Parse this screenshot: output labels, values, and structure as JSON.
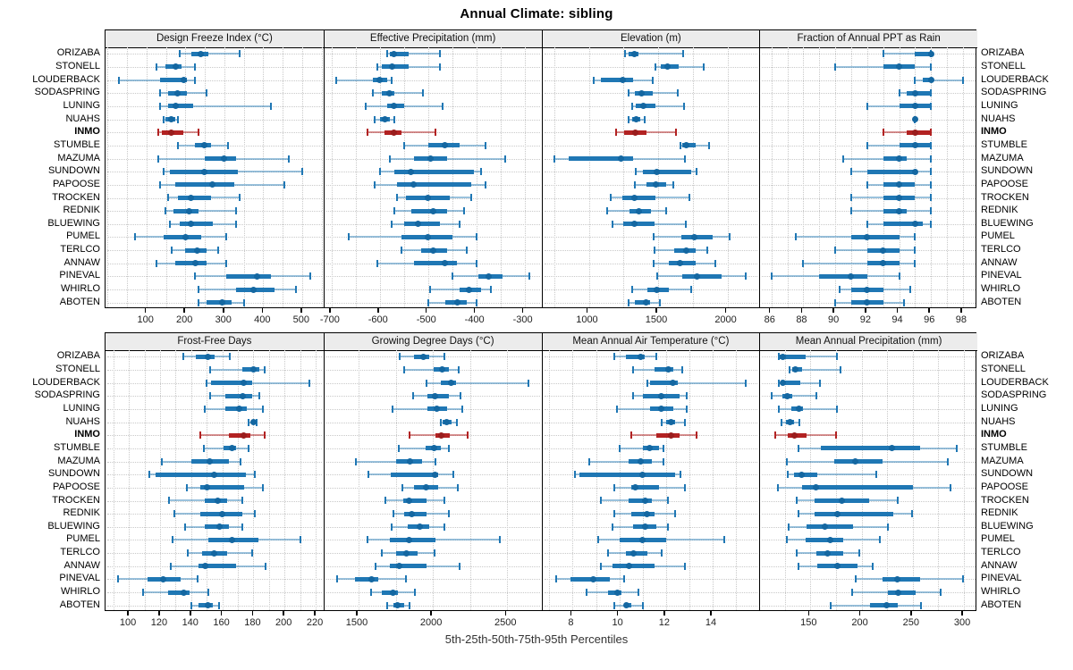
{
  "title": "Annual Climate: sibling",
  "caption": "5th-25th-50th-75th-95th Percentiles",
  "percentile_labels": [
    "5th",
    "25th",
    "50th",
    "75th",
    "95th"
  ],
  "stations": [
    "ORIZABA",
    "STONELL",
    "LOUDERBACK",
    "SODASPRING",
    "LUNING",
    "NUAHS",
    "INMO",
    "STUMBLE",
    "MAZUMA",
    "SUNDOWN",
    "PAPOOSE",
    "TROCKEN",
    "REDNIK",
    "BLUEWING",
    "PUMEL",
    "TERLCO",
    "ANNAW",
    "PINEVAL",
    "WHIRLO",
    "ABOTEN"
  ],
  "highlight_station": "INMO",
  "colors": {
    "series": "#1f77b4",
    "series_light": "rgba(31,119,180,0.45)",
    "series_dot": "#1467a1",
    "highlight": "#b22222",
    "highlight_light": "rgba(178,34,34,0.5)",
    "highlight_dot": "#9a1d1d",
    "header_bg": "#ececec",
    "grid": "#c9c9c9",
    "border": "#000000"
  },
  "chart_data": [
    {
      "type": "dot-whisker",
      "title": "Design Freeze Index (°C)",
      "row": 0,
      "col": 0,
      "xmin": -5,
      "xmax": 555,
      "ticks": [
        100,
        200,
        300,
        400,
        500
      ],
      "grid_step": 50,
      "values": [
        [
          185,
          215,
          240,
          260,
          340
        ],
        [
          125,
          150,
          175,
          190,
          225
        ],
        [
          30,
          135,
          195,
          205,
          225
        ],
        [
          135,
          155,
          180,
          205,
          255
        ],
        [
          135,
          155,
          175,
          220,
          420
        ],
        [
          145,
          150,
          163,
          175,
          182
        ],
        [
          130,
          140,
          165,
          195,
          235
        ],
        [
          180,
          225,
          250,
          265,
          310
        ],
        [
          130,
          250,
          300,
          330,
          465
        ],
        [
          145,
          160,
          250,
          335,
          500
        ],
        [
          135,
          175,
          270,
          325,
          455
        ],
        [
          155,
          180,
          215,
          265,
          340
        ],
        [
          150,
          170,
          210,
          235,
          330
        ],
        [
          160,
          185,
          215,
          270,
          330
        ],
        [
          70,
          145,
          200,
          240,
          305
        ],
        [
          165,
          200,
          230,
          255,
          285
        ],
        [
          125,
          175,
          225,
          255,
          305
        ],
        [
          225,
          305,
          385,
          420,
          520
        ],
        [
          235,
          330,
          375,
          430,
          485
        ],
        [
          235,
          255,
          295,
          320,
          350
        ]
      ]
    },
    {
      "type": "dot-whisker",
      "title": "Effective Precipitation (mm)",
      "row": 0,
      "col": 1,
      "xmin": -715,
      "xmax": -265,
      "ticks": [
        -700,
        -600,
        -500,
        -400,
        -300
      ],
      "grid_step": 50,
      "values": [
        [
          -585,
          -580,
          -570,
          -540,
          -475
        ],
        [
          -605,
          -595,
          -575,
          -540,
          -475
        ],
        [
          -690,
          -615,
          -600,
          -585,
          -575
        ],
        [
          -615,
          -595,
          -580,
          -570,
          -510
        ],
        [
          -630,
          -585,
          -570,
          -550,
          -470
        ],
        [
          -610,
          -600,
          -590,
          -580,
          -570
        ],
        [
          -625,
          -590,
          -570,
          -555,
          -485
        ],
        [
          -550,
          -500,
          -465,
          -435,
          -380
        ],
        [
          -580,
          -530,
          -495,
          -460,
          -340
        ],
        [
          -600,
          -570,
          -535,
          -405,
          -390
        ],
        [
          -610,
          -565,
          -530,
          -410,
          -380
        ],
        [
          -565,
          -545,
          -500,
          -455,
          -410
        ],
        [
          -570,
          -535,
          -490,
          -460,
          -425
        ],
        [
          -575,
          -550,
          -520,
          -475,
          -435
        ],
        [
          -665,
          -555,
          -500,
          -450,
          -400
        ],
        [
          -555,
          -515,
          -490,
          -460,
          -420
        ],
        [
          -605,
          -530,
          -465,
          -440,
          -400
        ],
        [
          -450,
          -395,
          -375,
          -345,
          -290
        ],
        [
          -495,
          -435,
          -415,
          -390,
          -370
        ],
        [
          -500,
          -465,
          -440,
          -420,
          -400
        ]
      ]
    },
    {
      "type": "dot-whisker",
      "title": "Elevation (m)",
      "row": 0,
      "col": 2,
      "xmin": 665,
      "xmax": 2230,
      "ticks": [
        1000,
        1500,
        2000
      ],
      "grid_step": 250,
      "values": [
        [
          1260,
          1290,
          1330,
          1360,
          1680
        ],
        [
          1480,
          1520,
          1570,
          1650,
          1830
        ],
        [
          1035,
          1090,
          1245,
          1320,
          1460
        ],
        [
          1285,
          1335,
          1380,
          1460,
          1640
        ],
        [
          1310,
          1340,
          1395,
          1480,
          1685
        ],
        [
          1285,
          1310,
          1345,
          1370,
          1405
        ],
        [
          1195,
          1255,
          1335,
          1415,
          1630
        ],
        [
          1660,
          1675,
          1700,
          1770,
          1865
        ],
        [
          755,
          855,
          1230,
          1320,
          1695
        ],
        [
          1340,
          1390,
          1490,
          1740,
          1780
        ],
        [
          1330,
          1415,
          1485,
          1555,
          1610
        ],
        [
          1155,
          1245,
          1330,
          1480,
          1725
        ],
        [
          1130,
          1295,
          1360,
          1450,
          1555
        ],
        [
          1170,
          1250,
          1330,
          1475,
          1700
        ],
        [
          1465,
          1670,
          1760,
          1895,
          2015
        ],
        [
          1475,
          1615,
          1700,
          1770,
          1855
        ],
        [
          1465,
          1580,
          1660,
          1770,
          1910
        ],
        [
          1495,
          1675,
          1780,
          1960,
          2130
        ],
        [
          1315,
          1420,
          1490,
          1580,
          1740
        ],
        [
          1290,
          1335,
          1410,
          1440,
          1510
        ]
      ]
    },
    {
      "type": "dot-whisker",
      "title": "Fraction of Annual PPT as Rain",
      "row": 0,
      "col": 3,
      "xmin": 85.3,
      "xmax": 98.9,
      "ticks": [
        86,
        88,
        90,
        92,
        94,
        96,
        98
      ],
      "grid_step": 1,
      "values": [
        [
          93,
          95,
          96,
          96,
          96
        ],
        [
          90,
          93,
          94,
          95,
          96
        ],
        [
          95,
          95.5,
          96,
          96,
          98
        ],
        [
          94,
          94.5,
          95,
          96,
          96
        ],
        [
          92,
          94,
          95,
          96,
          96
        ],
        [
          95,
          95,
          95,
          95,
          95
        ],
        [
          93,
          94.5,
          95,
          96,
          96
        ],
        [
          92,
          94,
          95,
          96,
          96
        ],
        [
          90.5,
          93,
          94,
          94.5,
          96
        ],
        [
          91,
          92,
          95,
          95,
          96
        ],
        [
          92,
          93,
          94,
          95,
          96
        ],
        [
          91,
          93,
          94,
          95,
          96
        ],
        [
          91,
          93,
          94,
          94.5,
          96
        ],
        [
          92,
          93,
          95,
          95.5,
          96
        ],
        [
          87.5,
          91,
          92,
          94,
          95
        ],
        [
          90,
          92,
          93,
          94,
          95
        ],
        [
          88,
          92,
          93,
          94,
          95
        ],
        [
          86,
          89,
          91,
          92,
          94
        ],
        [
          90.3,
          91,
          92,
          93,
          94.7
        ],
        [
          90,
          91,
          92,
          93,
          94.3
        ]
      ]
    },
    {
      "type": "dot-whisker",
      "title": "Frost-Free Days",
      "row": 1,
      "col": 0,
      "xmin": 85,
      "xmax": 225,
      "ticks": [
        100,
        120,
        140,
        160,
        180,
        200,
        220
      ],
      "grid_step": 10,
      "values": [
        [
          135,
          143,
          151,
          155,
          165
        ],
        [
          152,
          173,
          180,
          184,
          187
        ],
        [
          150,
          153,
          174,
          179,
          216
        ],
        [
          152,
          162,
          173,
          179,
          184
        ],
        [
          149,
          162,
          171,
          176,
          186
        ],
        [
          177,
          179,
          180,
          181,
          182
        ],
        [
          146,
          164,
          174,
          178,
          187
        ],
        [
          148,
          161,
          166,
          169,
          177
        ],
        [
          121,
          140,
          152,
          164,
          172
        ],
        [
          113,
          117,
          155,
          175,
          181
        ],
        [
          137,
          146,
          150,
          174,
          186
        ],
        [
          126,
          149,
          157,
          163,
          173
        ],
        [
          129,
          146,
          160,
          173,
          181
        ],
        [
          136,
          149,
          158,
          164,
          173
        ],
        [
          128,
          151,
          166,
          183,
          210
        ],
        [
          138,
          147,
          155,
          163,
          179
        ],
        [
          127,
          145,
          149,
          169,
          188
        ],
        [
          93,
          112,
          122,
          133,
          144
        ],
        [
          109,
          125,
          135,
          139,
          151
        ],
        [
          140,
          145,
          151,
          154,
          158
        ]
      ]
    },
    {
      "type": "dot-whisker",
      "title": "Growing Degree Days (°C)",
      "row": 1,
      "col": 1,
      "xmin": 1270,
      "xmax": 2730,
      "ticks": [
        1500,
        2000,
        2500
      ],
      "grid_step": 250,
      "values": [
        [
          1775,
          1875,
          1935,
          1975,
          2075
        ],
        [
          1805,
          2005,
          2065,
          2105,
          2175
        ],
        [
          1955,
          2055,
          2125,
          2155,
          2640
        ],
        [
          1865,
          1965,
          2015,
          2105,
          2185
        ],
        [
          1730,
          1965,
          2025,
          2095,
          2195
        ],
        [
          2055,
          2065,
          2090,
          2125,
          2160
        ],
        [
          1840,
          2015,
          2055,
          2115,
          2235
        ],
        [
          1770,
          1950,
          2010,
          2055,
          2105
        ],
        [
          1480,
          1755,
          1845,
          1925,
          2020
        ],
        [
          1565,
          1715,
          2015,
          2035,
          2135
        ],
        [
          1795,
          1875,
          1955,
          2035,
          2170
        ],
        [
          1680,
          1800,
          1840,
          1955,
          2075
        ],
        [
          1735,
          1805,
          1855,
          1960,
          2110
        ],
        [
          1725,
          1830,
          1910,
          1975,
          2075
        ],
        [
          1560,
          1710,
          1840,
          2020,
          2450
        ],
        [
          1655,
          1755,
          1820,
          1900,
          2010
        ],
        [
          1615,
          1710,
          1775,
          1960,
          2180
        ],
        [
          1355,
          1475,
          1585,
          1635,
          1820
        ],
        [
          1585,
          1655,
          1730,
          1765,
          1880
        ],
        [
          1695,
          1735,
          1760,
          1805,
          1840
        ]
      ]
    },
    {
      "type": "dot-whisker",
      "title": "Mean Annual Air Temperature (°C)",
      "row": 1,
      "col": 2,
      "xmin": 6.7,
      "xmax": 16.0,
      "ticks": [
        8,
        10,
        12,
        14
      ],
      "grid_step": 1,
      "values": [
        [
          9.8,
          10.3,
          10.9,
          11.1,
          11.6
        ],
        [
          10.6,
          11.5,
          12.1,
          12.3,
          12.7
        ],
        [
          11.2,
          11.3,
          12.3,
          12.5,
          15.4
        ],
        [
          10.6,
          11.0,
          11.8,
          12.6,
          12.9
        ],
        [
          9.9,
          11.3,
          11.8,
          12.3,
          12.9
        ],
        [
          11.8,
          12.0,
          12.2,
          12.4,
          12.8
        ],
        [
          10.5,
          11.6,
          12.2,
          12.6,
          13.3
        ],
        [
          10.0,
          11.0,
          11.3,
          11.7,
          11.9
        ],
        [
          8.7,
          10.4,
          10.9,
          11.4,
          11.9
        ],
        [
          8.1,
          8.3,
          11.0,
          12.4,
          12.6
        ],
        [
          9.8,
          10.5,
          10.7,
          11.7,
          12.8
        ],
        [
          9.2,
          10.4,
          11.1,
          11.4,
          12.1
        ],
        [
          9.8,
          10.5,
          11.2,
          11.5,
          12.4
        ],
        [
          9.7,
          10.6,
          11.1,
          11.6,
          12.1
        ],
        [
          9.1,
          10.0,
          11.0,
          12.0,
          14.5
        ],
        [
          9.5,
          10.3,
          10.6,
          11.2,
          11.8
        ],
        [
          9.2,
          9.7,
          10.4,
          11.5,
          12.8
        ],
        [
          7.3,
          7.9,
          8.9,
          9.6,
          10.2
        ],
        [
          8.6,
          9.5,
          9.9,
          10.1,
          10.8
        ],
        [
          9.8,
          10.2,
          10.3,
          10.5,
          11.0
        ]
      ]
    },
    {
      "type": "dot-whisker",
      "title": "Mean Annual Precipitation (mm)",
      "row": 1,
      "col": 3,
      "xmin": 101,
      "xmax": 313,
      "ticks": [
        150,
        200,
        250,
        300
      ],
      "grid_step": 25,
      "values": [
        [
          119,
          120,
          123,
          145,
          176
        ],
        [
          130,
          132,
          135,
          142,
          179
        ],
        [
          119,
          121,
          123,
          140,
          159
        ],
        [
          112,
          123,
          127,
          132,
          156
        ],
        [
          119,
          131,
          139,
          143,
          176
        ],
        [
          122,
          126,
          130,
          134,
          139
        ],
        [
          116,
          128,
          134,
          146,
          175
        ],
        [
          138,
          160,
          230,
          257,
          293
        ],
        [
          127,
          173,
          194,
          220,
          284
        ],
        [
          128,
          134,
          141,
          157,
          214
        ],
        [
          118,
          142,
          155,
          250,
          287
        ],
        [
          137,
          154,
          181,
          207,
          235
        ],
        [
          138,
          154,
          176,
          231,
          249
        ],
        [
          129,
          146,
          164,
          192,
          226
        ],
        [
          127,
          145,
          169,
          182,
          218
        ],
        [
          137,
          156,
          167,
          182,
          198
        ],
        [
          138,
          157,
          176,
          196,
          211
        ],
        [
          194,
          220,
          235,
          257,
          299
        ],
        [
          191,
          226,
          236,
          253,
          277
        ],
        [
          170,
          208,
          224,
          235,
          258
        ]
      ]
    }
  ]
}
